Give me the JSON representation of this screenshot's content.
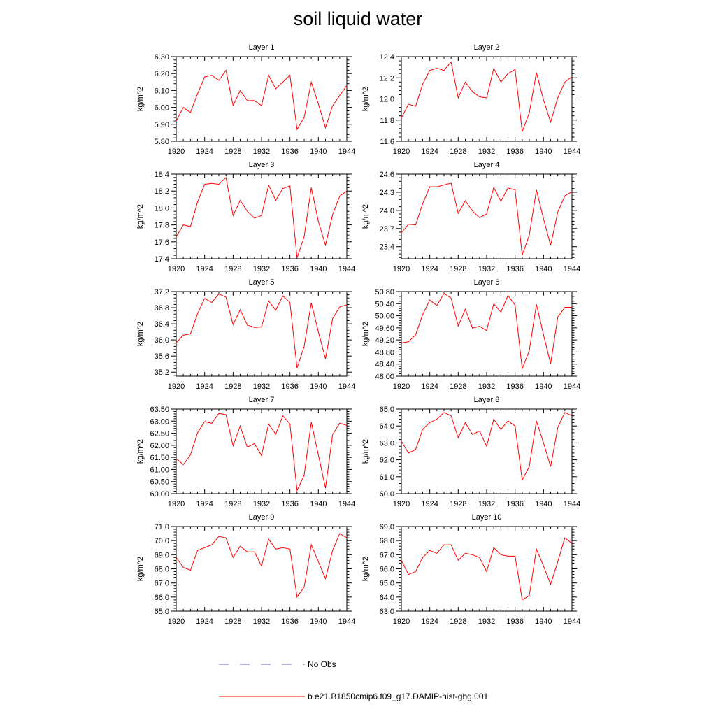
{
  "title": "soil liquid water",
  "legend": [
    {
      "label": "No Obs",
      "color": "#6a6ac8",
      "style": "dashed"
    },
    {
      "label": "b.e21.B1850cmip6.f09_g17.DAMIP-hist-ghg.001",
      "color": "#ff0000",
      "style": "solid"
    }
  ],
  "chart_data": [
    {
      "type": "line",
      "title": "Layer 1",
      "xlabel": "",
      "ylabel": "kg/m^2",
      "xlim": [
        1920,
        1944
      ],
      "ylim": [
        5.8,
        6.3
      ],
      "xticks": [
        "1920",
        "1924",
        "1928",
        "1932",
        "1936",
        "1940",
        "1944"
      ],
      "yticks": [
        "5.80",
        "5.90",
        "6.00",
        "6.10",
        "6.20",
        "6.30"
      ],
      "x": [
        1920,
        1921,
        1922,
        1923,
        1924,
        1925,
        1926,
        1927,
        1928,
        1929,
        1930,
        1931,
        1932,
        1933,
        1934,
        1935,
        1936,
        1937,
        1938,
        1939,
        1940,
        1941,
        1942,
        1943,
        1944
      ],
      "series": [
        {
          "name": "b.e21.B1850cmip6.f09_g17.DAMIP-hist-ghg.001",
          "values": [
            5.92,
            6.0,
            5.97,
            6.08,
            6.18,
            6.19,
            6.16,
            6.22,
            6.01,
            6.1,
            6.04,
            6.04,
            6.01,
            6.19,
            6.11,
            6.15,
            6.19,
            5.87,
            5.94,
            6.15,
            6.02,
            5.88,
            6.01,
            6.07,
            6.13
          ]
        }
      ]
    },
    {
      "type": "line",
      "title": "Layer 2",
      "xlabel": "",
      "ylabel": "kg/m^2",
      "xlim": [
        1920,
        1944
      ],
      "ylim": [
        11.6,
        12.4
      ],
      "xticks": [
        "1920",
        "1924",
        "1928",
        "1932",
        "1936",
        "1940",
        "1944"
      ],
      "yticks": [
        "11.6",
        "11.8",
        "12.0",
        "12.2",
        "12.4"
      ],
      "x": [
        1920,
        1921,
        1922,
        1923,
        1924,
        1925,
        1926,
        1927,
        1928,
        1929,
        1930,
        1931,
        1932,
        1933,
        1934,
        1935,
        1936,
        1937,
        1938,
        1939,
        1940,
        1941,
        1942,
        1943,
        1944
      ],
      "series": [
        {
          "name": "b.e21.B1850cmip6.f09_g17.DAMIP-hist-ghg.001",
          "values": [
            11.82,
            11.95,
            11.93,
            12.14,
            12.27,
            12.29,
            12.27,
            12.35,
            12.01,
            12.16,
            12.07,
            12.02,
            12.01,
            12.29,
            12.16,
            12.24,
            12.28,
            11.69,
            11.87,
            12.25,
            11.99,
            11.78,
            12.01,
            12.16,
            12.21
          ]
        }
      ]
    },
    {
      "type": "line",
      "title": "Layer 3",
      "xlabel": "",
      "ylabel": "kg/m^2",
      "xlim": [
        1920,
        1944
      ],
      "ylim": [
        17.4,
        18.4
      ],
      "xticks": [
        "1920",
        "1924",
        "1928",
        "1932",
        "1936",
        "1940",
        "1944"
      ],
      "yticks": [
        "17.4",
        "17.6",
        "17.8",
        "18.0",
        "18.2",
        "18.4"
      ],
      "x": [
        1920,
        1921,
        1922,
        1923,
        1924,
        1925,
        1926,
        1927,
        1928,
        1929,
        1930,
        1931,
        1932,
        1933,
        1934,
        1935,
        1936,
        1937,
        1938,
        1939,
        1940,
        1941,
        1942,
        1943,
        1944
      ],
      "series": [
        {
          "name": "b.e21.B1850cmip6.f09_g17.DAMIP-hist-ghg.001",
          "values": [
            17.66,
            17.8,
            17.78,
            18.07,
            18.28,
            18.29,
            18.28,
            18.36,
            17.91,
            18.09,
            17.96,
            17.88,
            17.91,
            18.27,
            18.09,
            18.23,
            18.26,
            17.41,
            17.66,
            18.24,
            17.84,
            17.56,
            17.92,
            18.14,
            18.2
          ]
        }
      ]
    },
    {
      "type": "line",
      "title": "Layer 4",
      "xlabel": "",
      "ylabel": "kg/m^2",
      "xlim": [
        1920,
        1944
      ],
      "ylim": [
        23.2,
        24.6
      ],
      "xticks": [
        "1920",
        "1924",
        "1928",
        "1932",
        "1936",
        "1940",
        "1944"
      ],
      "yticks": [
        "23.4",
        "23.7",
        "24.0",
        "24.3",
        "24.6"
      ],
      "x": [
        1920,
        1921,
        1922,
        1923,
        1924,
        1925,
        1926,
        1927,
        1928,
        1929,
        1930,
        1931,
        1932,
        1933,
        1934,
        1935,
        1936,
        1937,
        1938,
        1939,
        1940,
        1941,
        1942,
        1943,
        1944
      ],
      "series": [
        {
          "name": "b.e21.B1850cmip6.f09_g17.DAMIP-hist-ghg.001",
          "values": [
            23.63,
            23.77,
            23.76,
            24.11,
            24.39,
            24.39,
            24.42,
            24.45,
            23.95,
            24.16,
            23.99,
            23.88,
            23.94,
            24.38,
            24.15,
            24.37,
            24.34,
            23.26,
            23.59,
            24.34,
            23.86,
            23.42,
            23.97,
            24.24,
            24.31
          ]
        }
      ]
    },
    {
      "type": "line",
      "title": "Layer 5",
      "xlabel": "",
      "ylabel": "kg/m^2",
      "xlim": [
        1920,
        1944
      ],
      "ylim": [
        35.1,
        37.2
      ],
      "xticks": [
        "1920",
        "1924",
        "1928",
        "1932",
        "1936",
        "1940",
        "1944"
      ],
      "yticks": [
        "35.2",
        "35.6",
        "36.0",
        "36.4",
        "36.8",
        "37.2"
      ],
      "x": [
        1920,
        1921,
        1922,
        1923,
        1924,
        1925,
        1926,
        1927,
        1928,
        1929,
        1930,
        1931,
        1932,
        1933,
        1934,
        1935,
        1936,
        1937,
        1938,
        1939,
        1940,
        1941,
        1942,
        1943,
        1944
      ],
      "series": [
        {
          "name": "b.e21.B1850cmip6.f09_g17.DAMIP-hist-ghg.001",
          "values": [
            35.93,
            36.12,
            36.15,
            36.65,
            37.03,
            36.93,
            37.14,
            37.06,
            36.38,
            36.75,
            36.37,
            36.31,
            36.32,
            36.97,
            36.74,
            37.09,
            36.93,
            35.3,
            35.84,
            36.92,
            36.2,
            35.53,
            36.53,
            36.82,
            36.87
          ]
        }
      ]
    },
    {
      "type": "line",
      "title": "Layer 6",
      "xlabel": "",
      "ylabel": "kg/m^2",
      "xlim": [
        1920,
        1944
      ],
      "ylim": [
        48.0,
        50.8
      ],
      "xticks": [
        "1920",
        "1924",
        "1928",
        "1932",
        "1936",
        "1940",
        "1944"
      ],
      "yticks": [
        "48.00",
        "48.40",
        "48.80",
        "49.20",
        "49.60",
        "50.00",
        "50.40",
        "50.80"
      ],
      "x": [
        1920,
        1921,
        1922,
        1923,
        1924,
        1925,
        1926,
        1927,
        1928,
        1929,
        1930,
        1931,
        1932,
        1933,
        1934,
        1935,
        1936,
        1937,
        1938,
        1939,
        1940,
        1941,
        1942,
        1943,
        1944
      ],
      "series": [
        {
          "name": "b.e21.B1850cmip6.f09_g17.DAMIP-hist-ghg.001",
          "values": [
            49.1,
            49.14,
            49.37,
            50.04,
            50.52,
            50.34,
            50.74,
            50.58,
            49.66,
            50.22,
            49.59,
            49.65,
            49.51,
            50.4,
            50.12,
            50.67,
            50.35,
            48.24,
            48.85,
            50.38,
            49.37,
            48.41,
            49.95,
            50.28,
            50.28
          ]
        }
      ]
    },
    {
      "type": "line",
      "title": "Layer 7",
      "xlabel": "",
      "ylabel": "kg/m^2",
      "xlim": [
        1920,
        1944
      ],
      "ylim": [
        60.0,
        63.5
      ],
      "xticks": [
        "1920",
        "1924",
        "1928",
        "1932",
        "1936",
        "1940",
        "1944"
      ],
      "yticks": [
        "60.00",
        "60.50",
        "61.00",
        "61.50",
        "62.00",
        "62.50",
        "63.00",
        "63.50"
      ],
      "x": [
        1920,
        1921,
        1922,
        1923,
        1924,
        1925,
        1926,
        1927,
        1928,
        1929,
        1930,
        1931,
        1932,
        1933,
        1934,
        1935,
        1936,
        1937,
        1938,
        1939,
        1940,
        1941,
        1942,
        1943,
        1944
      ],
      "series": [
        {
          "name": "b.e21.B1850cmip6.f09_g17.DAMIP-hist-ghg.001",
          "values": [
            61.45,
            61.2,
            61.6,
            62.52,
            62.98,
            62.91,
            63.32,
            63.27,
            61.98,
            62.8,
            61.92,
            62.07,
            61.58,
            62.88,
            62.46,
            63.22,
            62.88,
            60.13,
            60.76,
            62.96,
            61.6,
            60.23,
            62.44,
            62.92,
            62.82
          ]
        }
      ]
    },
    {
      "type": "line",
      "title": "Layer 8",
      "xlabel": "",
      "ylabel": "kg/m^2",
      "xlim": [
        1920,
        1944
      ],
      "ylim": [
        60.0,
        65.0
      ],
      "xticks": [
        "1920",
        "1924",
        "1928",
        "1932",
        "1936",
        "1940",
        "1944"
      ],
      "yticks": [
        "60.0",
        "61.0",
        "62.0",
        "63.0",
        "64.0",
        "65.0"
      ],
      "x": [
        1920,
        1921,
        1922,
        1923,
        1924,
        1925,
        1926,
        1927,
        1928,
        1929,
        1930,
        1931,
        1932,
        1933,
        1934,
        1935,
        1936,
        1937,
        1938,
        1939,
        1940,
        1941,
        1942,
        1943,
        1944
      ],
      "series": [
        {
          "name": "b.e21.B1850cmip6.f09_g17.DAMIP-hist-ghg.001",
          "values": [
            63.1,
            62.4,
            62.6,
            63.8,
            64.2,
            64.4,
            64.8,
            64.6,
            63.3,
            64.2,
            63.5,
            63.7,
            62.8,
            64.4,
            63.8,
            64.3,
            64.0,
            60.8,
            61.6,
            64.3,
            63.0,
            61.6,
            63.9,
            64.8,
            64.6
          ]
        }
      ]
    },
    {
      "type": "line",
      "title": "Layer 9",
      "xlabel": "",
      "ylabel": "kg/m^2",
      "xlim": [
        1920,
        1944
      ],
      "ylim": [
        65.0,
        71.0
      ],
      "xticks": [
        "1920",
        "1924",
        "1928",
        "1932",
        "1936",
        "1940",
        "1944"
      ],
      "yticks": [
        "65.0",
        "66.0",
        "67.0",
        "68.0",
        "69.0",
        "70.0",
        "71.0"
      ],
      "x": [
        1920,
        1921,
        1922,
        1923,
        1924,
        1925,
        1926,
        1927,
        1928,
        1929,
        1930,
        1931,
        1932,
        1933,
        1934,
        1935,
        1936,
        1937,
        1938,
        1939,
        1940,
        1941,
        1942,
        1943,
        1944
      ],
      "series": [
        {
          "name": "b.e21.B1850cmip6.f09_g17.DAMIP-hist-ghg.001",
          "values": [
            68.8,
            68.1,
            67.9,
            69.3,
            69.5,
            69.7,
            70.3,
            70.2,
            68.8,
            69.6,
            69.2,
            69.2,
            68.2,
            70.1,
            69.4,
            69.5,
            69.4,
            66.0,
            66.7,
            69.7,
            68.5,
            67.3,
            69.3,
            70.5,
            70.2
          ]
        }
      ]
    },
    {
      "type": "line",
      "title": "Layer 10",
      "xlabel": "",
      "ylabel": "kg/m^2",
      "xlim": [
        1920,
        1944
      ],
      "ylim": [
        63.0,
        69.0
      ],
      "xticks": [
        "1920",
        "1924",
        "1928",
        "1932",
        "1936",
        "1940",
        "1944"
      ],
      "yticks": [
        "63.0",
        "64.0",
        "65.0",
        "66.0",
        "67.0",
        "68.0",
        "69.0"
      ],
      "x": [
        1920,
        1921,
        1922,
        1923,
        1924,
        1925,
        1926,
        1927,
        1928,
        1929,
        1930,
        1931,
        1932,
        1933,
        1934,
        1935,
        1936,
        1937,
        1938,
        1939,
        1940,
        1941,
        1942,
        1943,
        1944
      ],
      "series": [
        {
          "name": "b.e21.B1850cmip6.f09_g17.DAMIP-hist-ghg.001",
          "values": [
            66.6,
            65.6,
            65.8,
            66.8,
            67.3,
            67.1,
            67.7,
            67.7,
            66.6,
            67.1,
            67.0,
            66.8,
            65.8,
            67.5,
            67.0,
            66.9,
            66.9,
            63.8,
            64.1,
            67.4,
            66.2,
            64.9,
            66.5,
            68.2,
            67.8
          ]
        }
      ]
    }
  ]
}
